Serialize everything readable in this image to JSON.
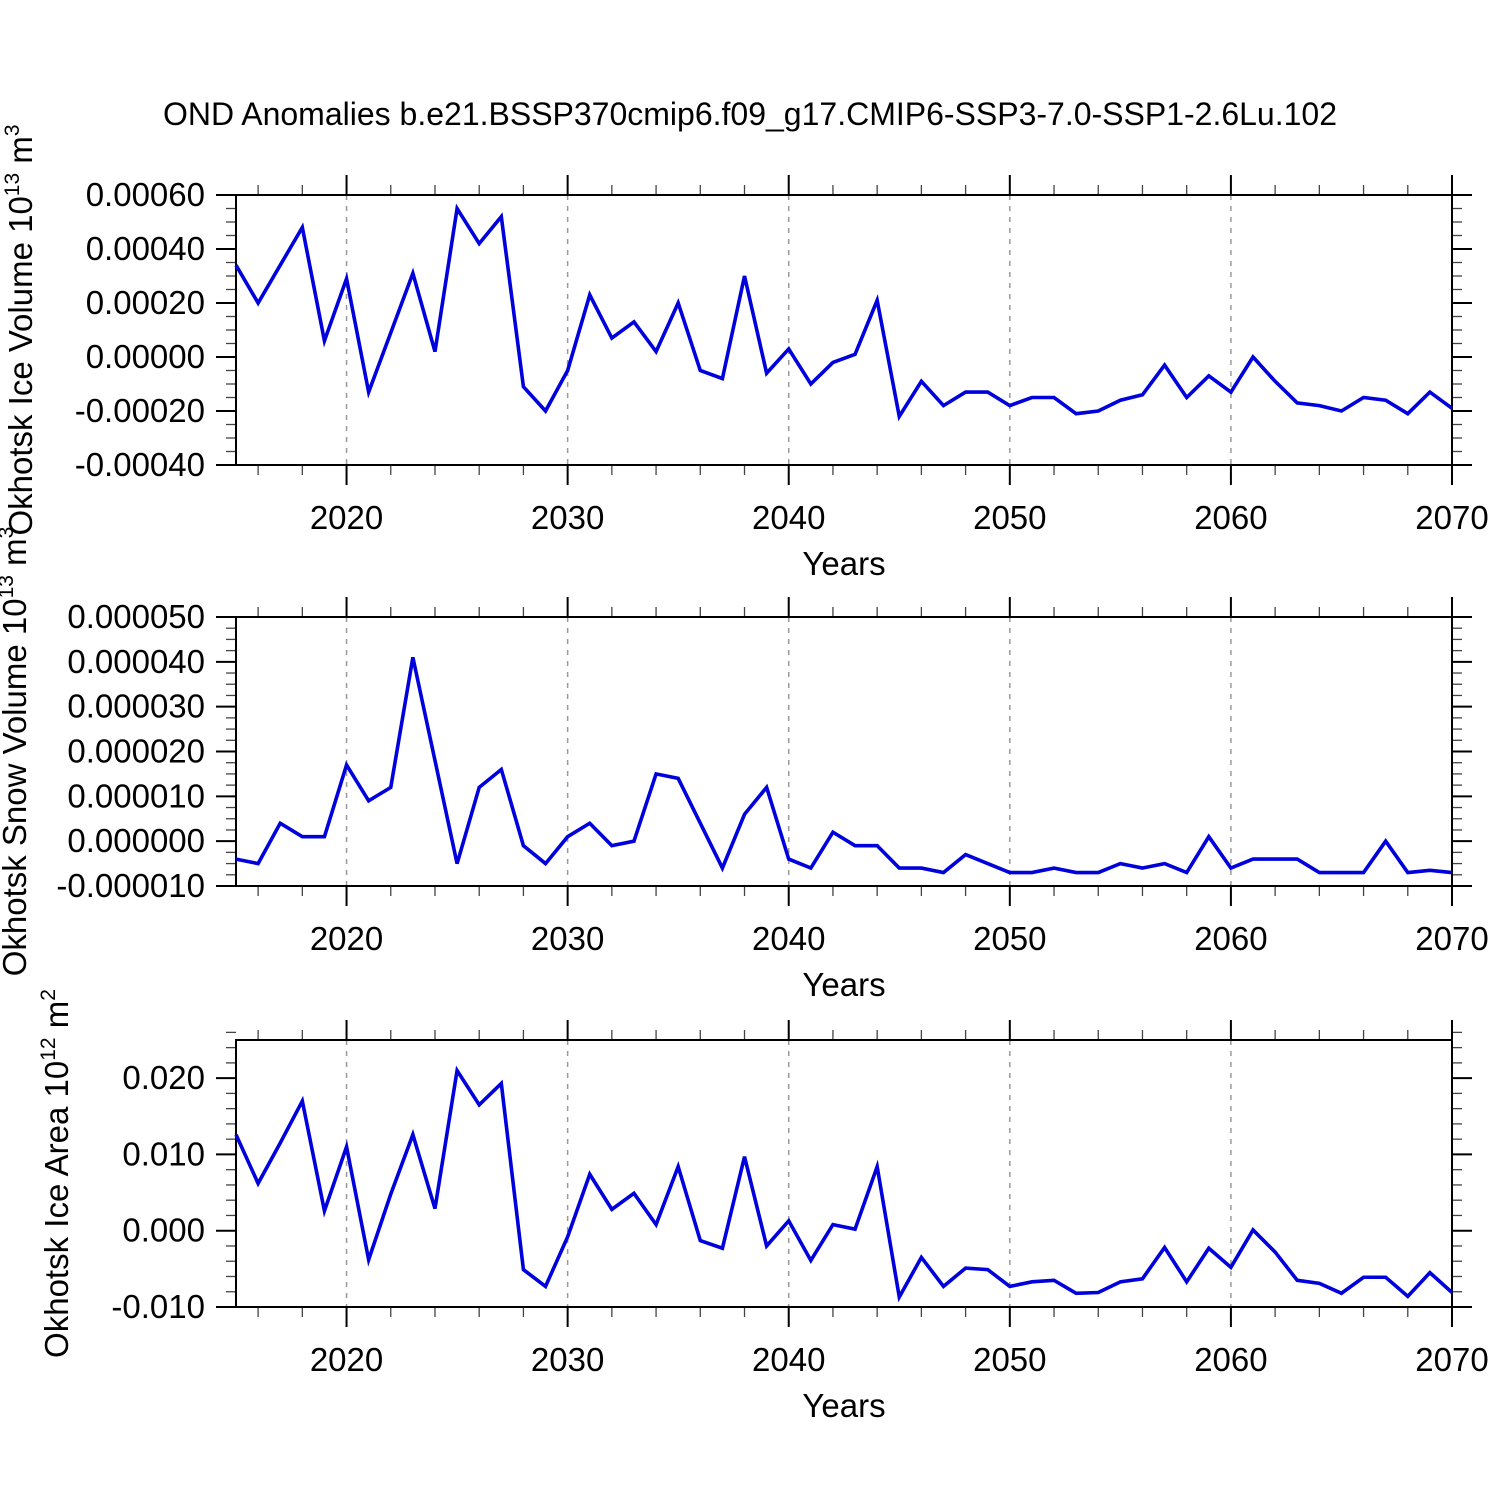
{
  "title": "OND Anomalies b.e21.BSSP370cmip6.f09_g17.CMIP6-SSP3-7.0-SSP1-2.6Lu.102",
  "colors": {
    "line": "#0000dd",
    "axis": "#000000",
    "grid": "#999999"
  },
  "chart_data": {
    "type": "line",
    "x_years": [
      2015,
      2016,
      2017,
      2018,
      2019,
      2020,
      2021,
      2022,
      2023,
      2024,
      2025,
      2026,
      2027,
      2028,
      2029,
      2030,
      2031,
      2032,
      2033,
      2034,
      2035,
      2036,
      2037,
      2038,
      2039,
      2040,
      2041,
      2042,
      2043,
      2044,
      2045,
      2046,
      2047,
      2048,
      2049,
      2050,
      2051,
      2052,
      2053,
      2054,
      2055,
      2056,
      2057,
      2058,
      2059,
      2060,
      2061,
      2062,
      2063,
      2064,
      2065,
      2066,
      2067,
      2068,
      2069,
      2070
    ],
    "x_range": [
      2015,
      2070
    ],
    "x_major_years": [
      2020,
      2030,
      2040,
      2050,
      2060,
      2070
    ],
    "x_tick_labels": [
      "2020",
      "2030",
      "2040",
      "2050",
      "2060",
      "2070"
    ],
    "x_minor_step": 2,
    "x_grid_years": [
      2020,
      2030,
      2040,
      2050,
      2060
    ],
    "grid_style": "dashed",
    "legend": "none",
    "panels": [
      {
        "name": "ice-volume",
        "ylabel": "Okhotsk Ice Volume 10^13^ m^3^",
        "xlabel": "Years",
        "ylim": [
          -0.0004,
          0.0006
        ],
        "y_major_start": 0.0006,
        "y_major_step": 0.0002,
        "y_minor_step": 5e-05,
        "y_tick_labels": [
          "0.00060",
          "0.00040",
          "0.00020",
          "0.00000",
          "-0.00020",
          "-0.00040"
        ],
        "values": [
          0.00034,
          0.0002,
          0.00034,
          0.00048,
          6e-05,
          0.00029,
          -0.00013,
          9e-05,
          0.00031,
          2e-05,
          0.00055,
          0.00042,
          0.00052,
          -0.00011,
          -0.0002,
          -5e-05,
          0.00023,
          7e-05,
          0.00013,
          2e-05,
          0.0002,
          -5e-05,
          -8e-05,
          0.0003,
          -6e-05,
          3e-05,
          -0.0001,
          -2e-05,
          1e-05,
          0.00021,
          -0.00022,
          -9e-05,
          -0.00018,
          -0.00013,
          -0.00013,
          -0.00018,
          -0.00015,
          -0.00015,
          -0.00021,
          -0.0002,
          -0.00016,
          -0.00014,
          -3e-05,
          -0.00015,
          -7e-05,
          -0.00013,
          0.0,
          -9e-05,
          -0.00017,
          -0.00018,
          -0.0002,
          -0.00015,
          -0.00016,
          -0.00021,
          -0.00013,
          -0.00019
        ]
      },
      {
        "name": "snow-volume",
        "ylabel": "Okhotsk Snow Volume 10^13^ m^3^",
        "xlabel": "Years",
        "ylim": [
          -1e-05,
          5e-05
        ],
        "y_major_start": 5e-05,
        "y_major_step": 1e-05,
        "y_minor_step": 2.5e-06,
        "y_tick_labels": [
          "0.000050",
          "0.000040",
          "0.000030",
          "0.000020",
          "0.000010",
          "0.000000",
          "-0.000010"
        ],
        "values": [
          -4e-06,
          -5e-06,
          4e-06,
          1e-06,
          1e-06,
          1.7e-05,
          9e-06,
          1.2e-05,
          4.1e-05,
          1.8e-05,
          -5e-06,
          1.2e-05,
          1.6e-05,
          -1e-06,
          -5e-06,
          1e-06,
          4e-06,
          -1e-06,
          0.0,
          1.5e-05,
          1.4e-05,
          4e-06,
          -6e-06,
          6e-06,
          1.2e-05,
          -4e-06,
          -6e-06,
          2e-06,
          -1e-06,
          -1e-06,
          -6e-06,
          -6e-06,
          -7e-06,
          -3e-06,
          -5e-06,
          -7e-06,
          -7e-06,
          -6e-06,
          -7e-06,
          -7e-06,
          -5e-06,
          -6e-06,
          -5e-06,
          -7e-06,
          1e-06,
          -6e-06,
          -4e-06,
          -4e-06,
          -4e-06,
          -7e-06,
          -7e-06,
          -7e-06,
          0.0,
          -7e-06,
          -6.5e-06,
          -7e-06
        ]
      },
      {
        "name": "ice-area",
        "ylabel": "Okhotsk Ice Area 10^12^ m^2^",
        "xlabel": "Years",
        "ylim": [
          -0.01,
          0.025
        ],
        "y_major_start": 0.02,
        "y_major_step": 0.01,
        "y_minor_step": 0.002,
        "y_tick_labels": [
          "0.020",
          "0.010",
          "0.000",
          "-0.010"
        ],
        "values": [
          0.0126,
          0.0062,
          0.0115,
          0.017,
          0.0026,
          0.011,
          -0.0038,
          0.0048,
          0.0126,
          0.0029,
          0.021,
          0.0165,
          0.0193,
          -0.0051,
          -0.0073,
          -0.0008,
          0.0074,
          0.0028,
          0.0049,
          0.0008,
          0.0084,
          -0.0013,
          -0.0023,
          0.0097,
          -0.002,
          0.0013,
          -0.0039,
          0.0008,
          0.0002,
          0.0084,
          -0.0087,
          -0.0035,
          -0.0073,
          -0.0049,
          -0.0051,
          -0.0073,
          -0.0067,
          -0.0065,
          -0.0082,
          -0.0081,
          -0.0067,
          -0.0063,
          -0.0022,
          -0.0067,
          -0.0023,
          -0.0048,
          0.0001,
          -0.0028,
          -0.0065,
          -0.0069,
          -0.0082,
          -0.0061,
          -0.0061,
          -0.0086,
          -0.0055,
          -0.0081
        ]
      }
    ]
  }
}
